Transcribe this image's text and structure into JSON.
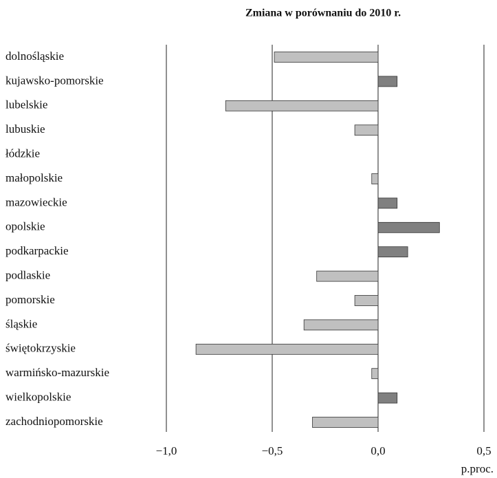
{
  "chart_data": {
    "type": "barh",
    "title": "Zmiana w porównaniu do 2010 r.",
    "x_label": "p.proc.",
    "categories": [
      "dolnośląskie",
      "kujawsko-pomorskie",
      "lubelskie",
      "lubuskie",
      "łódzkie",
      "małopolskie",
      "mazowieckie",
      "opolskie",
      "podkarpackie",
      "podlaskie",
      "pomorskie",
      "śląskie",
      "świętokrzyskie",
      "warmińsko-mazurskie",
      "wielkopolskie",
      "zachodniopomorskie"
    ],
    "values": [
      -0.49,
      0.09,
      -0.72,
      -0.11,
      0,
      -0.03,
      0.09,
      0.29,
      0.14,
      -0.29,
      -0.11,
      -0.35,
      -0.86,
      -0.03,
      0.09,
      -0.31
    ],
    "negative_color": "#c0c0c0",
    "positive_color": "#808080",
    "xlim": [
      -1.0,
      0.5
    ],
    "xticks": [
      {
        "value": -1.0,
        "label": "−1,0"
      },
      {
        "value": -0.5,
        "label": "−0,5"
      },
      {
        "value": 0,
        "label": "0,0"
      },
      {
        "value": 0.5,
        "label": "0,5"
      }
    ],
    "grid": true
  }
}
